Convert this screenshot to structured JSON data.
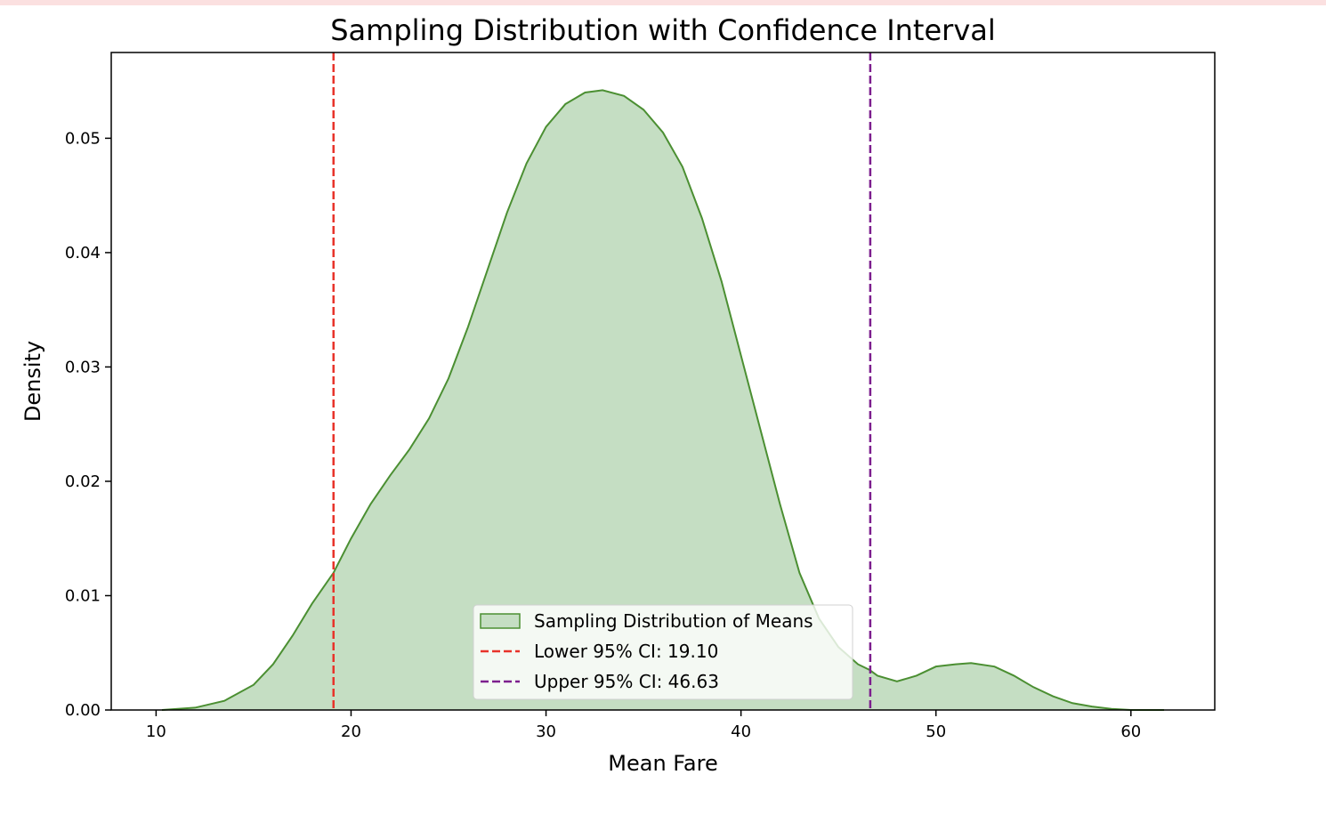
{
  "top_strip": {
    "text": ""
  },
  "chart_data": {
    "type": "area",
    "title": "Sampling Distribution with Confidence Interval",
    "xlabel": "Mean Fare",
    "ylabel": "Density",
    "xlim": [
      7.7,
      64.3
    ],
    "ylim": [
      0,
      0.0575
    ],
    "x_ticks": [
      10,
      20,
      30,
      40,
      50,
      60
    ],
    "y_ticks": [
      0.0,
      0.01,
      0.02,
      0.03,
      0.04,
      0.05
    ],
    "x_tick_labels": [
      "10",
      "20",
      "30",
      "40",
      "50",
      "60"
    ],
    "y_tick_labels": [
      "0.00",
      "0.01",
      "0.02",
      "0.03",
      "0.04",
      "0.05"
    ],
    "grid": false,
    "legend_position": "lower center",
    "colors": {
      "kde_fill": "#c5dec3",
      "kde_line": "#4b8f32",
      "lower_ci": "#e8332a",
      "upper_ci": "#7d1f8e"
    },
    "series": [
      {
        "name": "Sampling Distribution of Means",
        "x": [
          10.3,
          12,
          13.5,
          15,
          16,
          17,
          18,
          19.1,
          20,
          21,
          22,
          23,
          24,
          25,
          26,
          27,
          28,
          29,
          30,
          31,
          32,
          32.9,
          34,
          35,
          36,
          37,
          38,
          39,
          40,
          41,
          42,
          43,
          44,
          45,
          46,
          46.6,
          47,
          48,
          49,
          50,
          51,
          51.8,
          53,
          54,
          55,
          56,
          57,
          58,
          59,
          60,
          61,
          61.7
        ],
        "y": [
          0.0,
          0.0002,
          0.0008,
          0.0022,
          0.004,
          0.0065,
          0.0093,
          0.012,
          0.015,
          0.018,
          0.0205,
          0.0228,
          0.0255,
          0.029,
          0.0335,
          0.0385,
          0.0435,
          0.0478,
          0.051,
          0.053,
          0.054,
          0.0542,
          0.0537,
          0.0525,
          0.0505,
          0.0475,
          0.043,
          0.0375,
          0.031,
          0.0245,
          0.018,
          0.012,
          0.008,
          0.0055,
          0.004,
          0.0035,
          0.003,
          0.0025,
          0.003,
          0.0038,
          0.004,
          0.0041,
          0.0038,
          0.003,
          0.002,
          0.0012,
          0.0006,
          0.0003,
          0.0001,
          0.0,
          0.0,
          0.0
        ]
      }
    ],
    "vlines": [
      {
        "name": "Lower 95% CI: 19.10",
        "x": 19.1,
        "style": "dashed"
      },
      {
        "name": "Upper 95% CI: 46.63",
        "x": 46.63,
        "style": "dashed"
      }
    ]
  }
}
